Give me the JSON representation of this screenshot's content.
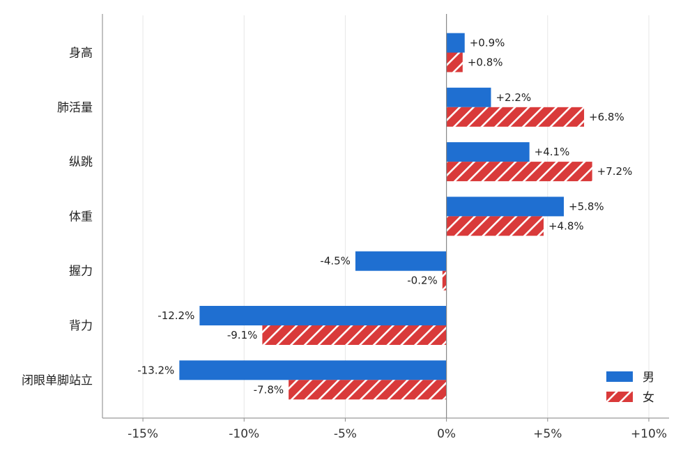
{
  "chart_data": {
    "type": "bar",
    "orientation": "horizontal",
    "categories": [
      "身高",
      "肺活量",
      "纵跳",
      "体重",
      "握力",
      "背力",
      "闭眼单脚站立"
    ],
    "series": [
      {
        "name": "男",
        "values": [
          0.9,
          2.2,
          4.1,
          5.8,
          -4.5,
          -12.2,
          -13.2
        ],
        "labels": [
          "+0.9%",
          "+2.2%",
          "+4.1%",
          "+5.8%",
          "-4.5%",
          "-12.2%",
          "-13.2%"
        ],
        "color": "#1f6fd1",
        "pattern": "solid"
      },
      {
        "name": "女",
        "values": [
          0.8,
          6.8,
          7.2,
          4.8,
          -0.2,
          -9.1,
          -7.8
        ],
        "labels": [
          "+0.8%",
          "+6.8%",
          "+7.2%",
          "+4.8%",
          "-0.2%",
          "-9.1%",
          "-7.8%"
        ],
        "color": "#d93a3a",
        "pattern": "hatched"
      }
    ],
    "xlim": [
      -17,
      11
    ],
    "xticks": [
      -15,
      -10,
      -5,
      0,
      5,
      10
    ],
    "xtick_labels": [
      "-15%",
      "-10%",
      "-5%",
      "0%",
      "+5%",
      "+10%"
    ],
    "grid": "vertical",
    "legend": "bottom-right"
  }
}
